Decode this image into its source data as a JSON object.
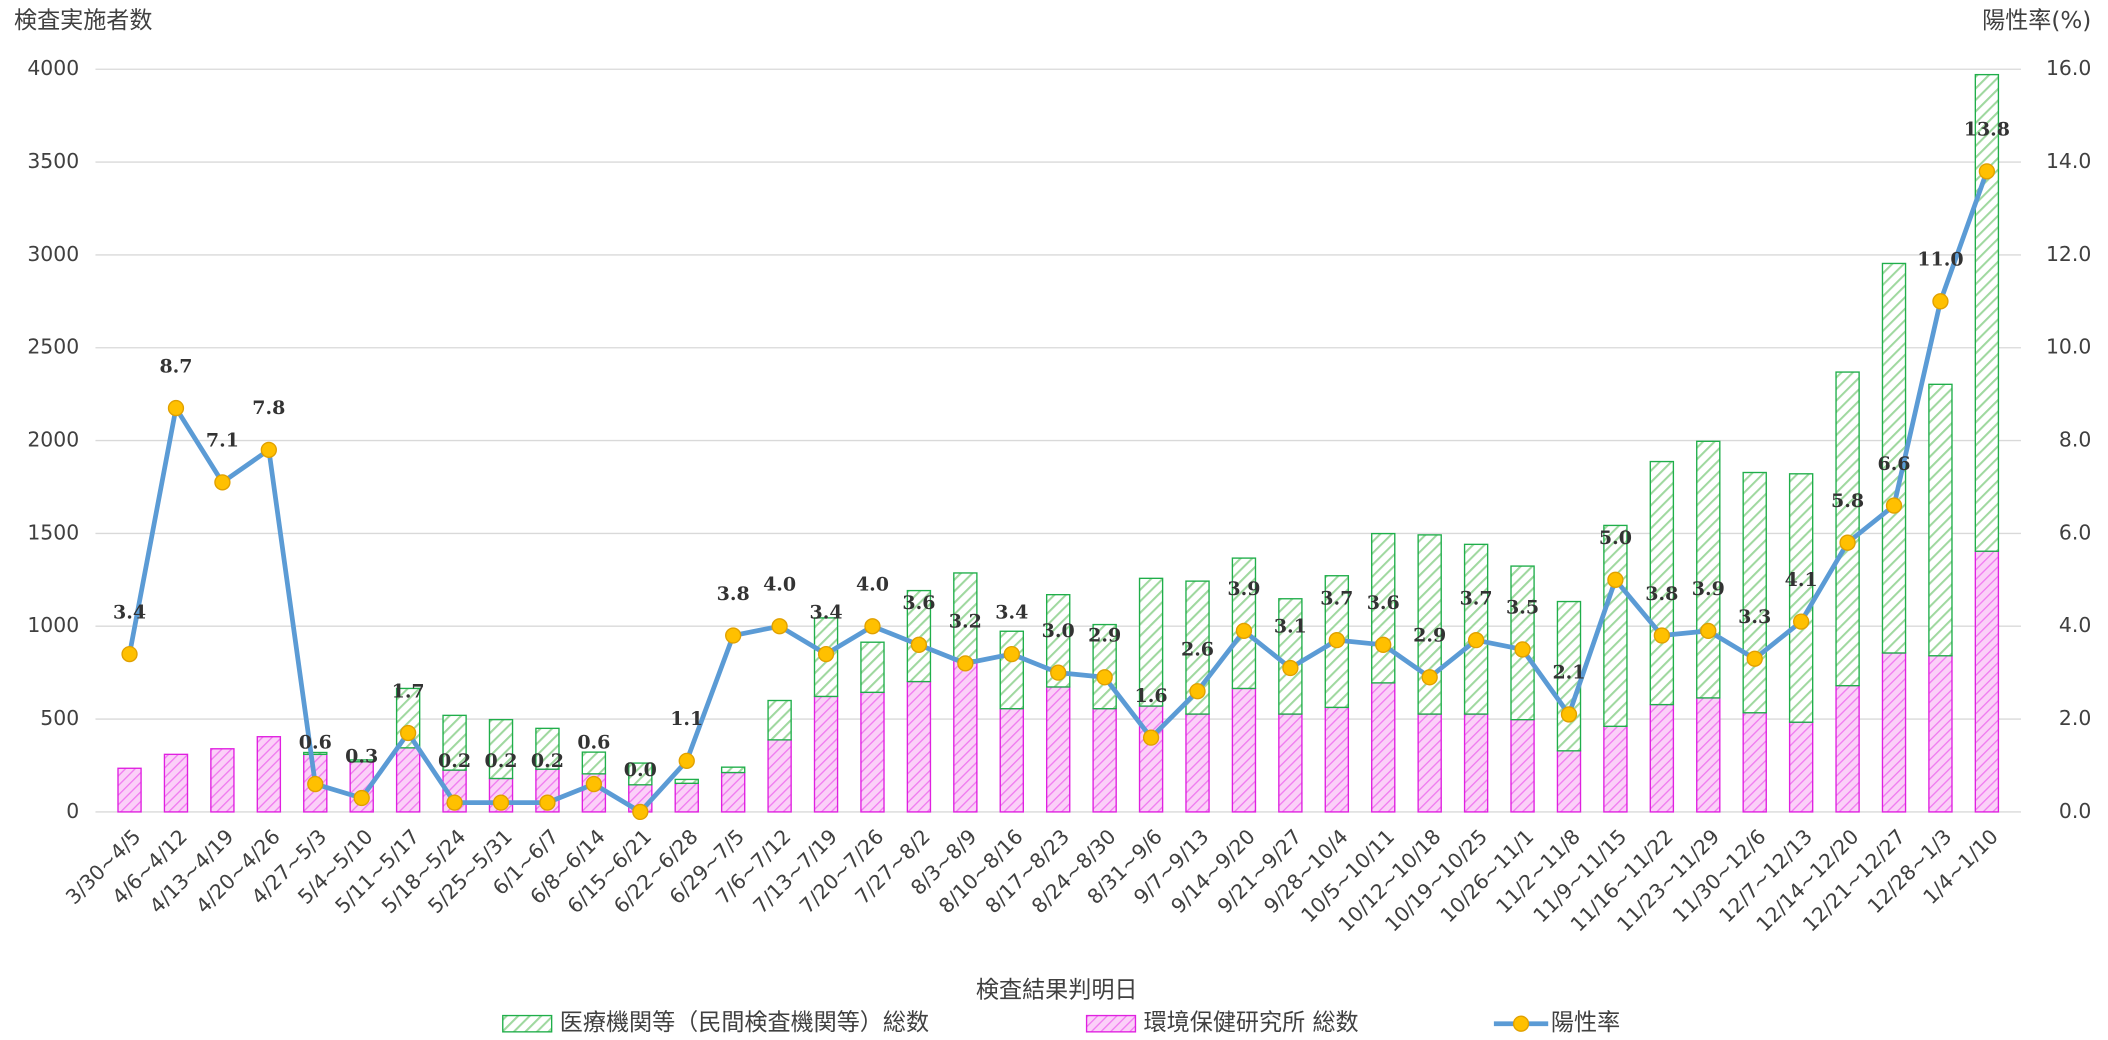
{
  "chart_data": {
    "type": "bar-line",
    "y_label": "検査実施者数",
    "y2_label": "陽性率(%)",
    "x_label": "検査結果判明日",
    "categories": [
      "3/30~4/5",
      "4/6~4/12",
      "4/13~4/19",
      "4/20~4/26",
      "4/27~5/3",
      "5/4~5/10",
      "5/11~5/17",
      "5/18~5/24",
      "5/25~5/31",
      "6/1~6/7",
      "6/8~6/14",
      "6/15~6/21",
      "6/22~6/28",
      "6/29~7/5",
      "7/6~7/12",
      "7/13~7/19",
      "7/20~7/26",
      "7/27~8/2",
      "8/3~8/9",
      "8/10~8/16",
      "8/17~8/23",
      "8/24~8/30",
      "8/31~9/6",
      "9/7~9/13",
      "9/14~9/20",
      "9/21~9/27",
      "9/28~10/4",
      "10/5~10/11",
      "10/12~10/18",
      "10/19~10/25",
      "10/26~11/1",
      "11/2~11/8",
      "11/9~11/15",
      "11/16~11/22",
      "11/23~11/29",
      "11/30~12/6",
      "12/7~12/13",
      "12/14~12/20",
      "12/21~12/27",
      "12/28~1/3",
      "1/4~1/10"
    ],
    "series": [
      {
        "name": "医療機関等（民間検査機関等）総数",
        "color": "#1fae4a",
        "stack": true,
        "values": [
          0,
          0,
          0,
          0,
          10,
          10,
          320,
          295,
          317,
          220,
          117,
          117,
          21,
          29,
          212,
          423,
          270,
          490,
          468,
          417,
          497,
          453,
          688,
          716,
          702,
          621,
          709,
          804,
          965,
          914,
          827,
          804,
          1082,
          1309,
          1382,
          1294,
          1338,
          1689,
          2098,
          1462,
          2567
        ]
      },
      {
        "name": "環境保健研究所 総数",
        "color": "#e020e0",
        "stack": true,
        "values": [
          235,
          310,
          340,
          405,
          310,
          270,
          345,
          225,
          180,
          230,
          205,
          146,
          154,
          212,
          388,
          622,
          644,
          702,
          819,
          556,
          673,
          556,
          570,
          527,
          665,
          527,
          563,
          695,
          527,
          527,
          497,
          329,
          461,
          578,
          614,
          534,
          483,
          680,
          856,
          841,
          1404
        ]
      },
      {
        "name": "陽性率",
        "color": "#5b9bd5",
        "marker_color": "#ffc000",
        "axis": "y2",
        "values": [
          3.4,
          8.7,
          7.1,
          7.8,
          0.6,
          0.3,
          1.7,
          0.2,
          0.2,
          0.2,
          0.6,
          0.0,
          1.1,
          3.8,
          4.0,
          3.4,
          4.0,
          3.6,
          3.2,
          3.4,
          3.0,
          2.9,
          1.6,
          2.6,
          3.9,
          3.1,
          3.7,
          3.6,
          2.9,
          3.7,
          3.5,
          2.1,
          5.0,
          3.8,
          3.9,
          3.3,
          4.1,
          5.8,
          6.6,
          11.0,
          13.8
        ],
        "value_labels": [
          "3.4",
          "8.7",
          "7.1",
          "7.8",
          "0.6",
          "0.3",
          "1.7",
          "0.2",
          "0.2",
          "0.2",
          "0.6",
          "0.0",
          "1.1",
          "3.8",
          "4.0",
          "3.4",
          "4.0",
          "3.6",
          "3.2",
          "3.4",
          "3.0",
          "2.9",
          "1.6",
          "2.6",
          "3.9",
          "3.1",
          "3.7",
          "3.6",
          "2.9",
          "3.7",
          "3.5",
          "2.1",
          "5.0",
          "3.8",
          "3.9",
          "3.3",
          "4.1",
          "5.8",
          "6.6",
          "11.0",
          "13.8"
        ]
      }
    ],
    "ylim": [
      0,
      4000
    ],
    "yticks": [
      0,
      500,
      1000,
      1500,
      2000,
      2500,
      3000,
      3500,
      4000
    ],
    "y2lim": [
      0,
      16
    ],
    "y2ticks": [
      {
        "value": 0,
        "label": "0.0"
      },
      {
        "value": 2,
        "label": "2.0"
      },
      {
        "value": 4,
        "label": "4.0"
      },
      {
        "value": 6,
        "label": "6.0"
      },
      {
        "value": 8,
        "label": "8.0"
      },
      {
        "value": 10,
        "label": "10.0"
      },
      {
        "value": 12,
        "label": "12.0"
      },
      {
        "value": 14,
        "label": "14.0"
      },
      {
        "value": 16,
        "label": "16.0"
      }
    ],
    "grid": true,
    "legend": "bottom"
  }
}
